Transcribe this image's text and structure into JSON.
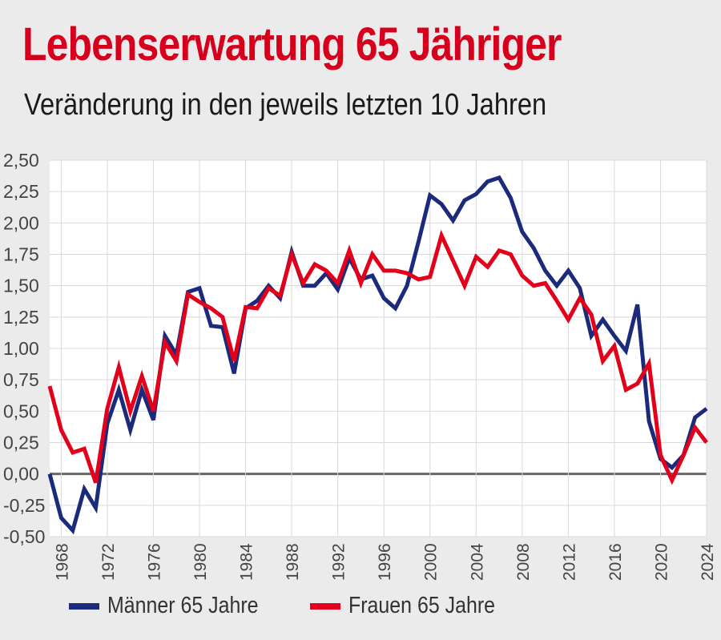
{
  "title": "Lebenserwartung 65 Jähriger",
  "subtitle": "Veränderung in den jeweils letzten 10 Jahren",
  "colors": {
    "accent": "#d6001c",
    "maenner": "#1b2a7a",
    "frauen": "#e3001b",
    "zero_line": "#666666",
    "grid": "#d9d9d9"
  },
  "chart_data": {
    "type": "line",
    "title": "Lebenserwartung 65 Jähriger",
    "subtitle": "Veränderung in den jeweils letzten 10 Jahren",
    "xlabel": "",
    "ylabel": "",
    "ylim": [
      -0.5,
      2.5
    ],
    "xlim": [
      1967,
      2024
    ],
    "y_ticks": [
      "2,50",
      "2,25",
      "2,00",
      "1,75",
      "1,50",
      "1,25",
      "1,00",
      "0,75",
      "0,50",
      "0,25",
      "0,00",
      "-0,25",
      "-0,50"
    ],
    "x_ticks": [
      "1968",
      "1972",
      "1976",
      "1980",
      "1984",
      "1988",
      "1992",
      "1996",
      "2000",
      "2004",
      "2008",
      "2012",
      "2016",
      "2020",
      "2024"
    ],
    "grid": true,
    "legend": "bottom",
    "series": [
      {
        "name": "Männer 65 Jahre",
        "color": "#1b2a7a",
        "points": [
          [
            1967,
            0.0
          ],
          [
            1968,
            -0.35
          ],
          [
            1969,
            -0.45
          ],
          [
            1970,
            -0.12
          ],
          [
            1971,
            -0.27
          ],
          [
            1972,
            0.4
          ],
          [
            1973,
            0.67
          ],
          [
            1974,
            0.35
          ],
          [
            1975,
            0.67
          ],
          [
            1976,
            0.43
          ],
          [
            1977,
            1.1
          ],
          [
            1978,
            0.95
          ],
          [
            1979,
            1.45
          ],
          [
            1980,
            1.48
          ],
          [
            1981,
            1.18
          ],
          [
            1982,
            1.17
          ],
          [
            1983,
            0.8
          ],
          [
            1984,
            1.32
          ],
          [
            1985,
            1.38
          ],
          [
            1986,
            1.5
          ],
          [
            1987,
            1.4
          ],
          [
            1988,
            1.77
          ],
          [
            1989,
            1.5
          ],
          [
            1990,
            1.5
          ],
          [
            1991,
            1.6
          ],
          [
            1992,
            1.47
          ],
          [
            1993,
            1.72
          ],
          [
            1994,
            1.55
          ],
          [
            1995,
            1.58
          ],
          [
            1996,
            1.4
          ],
          [
            1997,
            1.32
          ],
          [
            1998,
            1.5
          ],
          [
            1999,
            1.85
          ],
          [
            2000,
            2.22
          ],
          [
            2001,
            2.15
          ],
          [
            2002,
            2.02
          ],
          [
            2003,
            2.18
          ],
          [
            2004,
            2.23
          ],
          [
            2005,
            2.33
          ],
          [
            2006,
            2.36
          ],
          [
            2007,
            2.2
          ],
          [
            2008,
            1.93
          ],
          [
            2009,
            1.8
          ],
          [
            2010,
            1.62
          ],
          [
            2011,
            1.5
          ],
          [
            2012,
            1.62
          ],
          [
            2013,
            1.48
          ],
          [
            2014,
            1.1
          ],
          [
            2015,
            1.23
          ],
          [
            2016,
            1.1
          ],
          [
            2017,
            0.98
          ],
          [
            2018,
            1.35
          ],
          [
            2019,
            0.42
          ],
          [
            2020,
            0.12
          ],
          [
            2021,
            0.05
          ],
          [
            2022,
            0.15
          ],
          [
            2023,
            0.45
          ],
          [
            2024,
            0.52
          ]
        ]
      },
      {
        "name": "Frauen 65 Jahre",
        "color": "#e3001b",
        "points": [
          [
            1967,
            0.7
          ],
          [
            1968,
            0.35
          ],
          [
            1969,
            0.17
          ],
          [
            1970,
            0.2
          ],
          [
            1971,
            -0.07
          ],
          [
            1972,
            0.52
          ],
          [
            1973,
            0.85
          ],
          [
            1974,
            0.5
          ],
          [
            1975,
            0.78
          ],
          [
            1976,
            0.5
          ],
          [
            1977,
            1.05
          ],
          [
            1978,
            0.9
          ],
          [
            1979,
            1.43
          ],
          [
            1980,
            1.37
          ],
          [
            1981,
            1.32
          ],
          [
            1982,
            1.25
          ],
          [
            1983,
            0.9
          ],
          [
            1984,
            1.33
          ],
          [
            1985,
            1.32
          ],
          [
            1986,
            1.48
          ],
          [
            1987,
            1.42
          ],
          [
            1988,
            1.75
          ],
          [
            1989,
            1.52
          ],
          [
            1990,
            1.67
          ],
          [
            1991,
            1.62
          ],
          [
            1992,
            1.52
          ],
          [
            1993,
            1.78
          ],
          [
            1994,
            1.52
          ],
          [
            1995,
            1.75
          ],
          [
            1996,
            1.62
          ],
          [
            1997,
            1.62
          ],
          [
            1998,
            1.6
          ],
          [
            1999,
            1.55
          ],
          [
            2000,
            1.57
          ],
          [
            2001,
            1.9
          ],
          [
            2002,
            1.7
          ],
          [
            2003,
            1.5
          ],
          [
            2004,
            1.73
          ],
          [
            2005,
            1.65
          ],
          [
            2006,
            1.78
          ],
          [
            2007,
            1.75
          ],
          [
            2008,
            1.58
          ],
          [
            2009,
            1.5
          ],
          [
            2010,
            1.52
          ],
          [
            2011,
            1.38
          ],
          [
            2012,
            1.23
          ],
          [
            2013,
            1.4
          ],
          [
            2014,
            1.27
          ],
          [
            2015,
            0.9
          ],
          [
            2016,
            1.02
          ],
          [
            2017,
            0.67
          ],
          [
            2018,
            0.72
          ],
          [
            2019,
            0.88
          ],
          [
            2020,
            0.15
          ],
          [
            2021,
            -0.05
          ],
          [
            2022,
            0.15
          ],
          [
            2023,
            0.37
          ],
          [
            2024,
            0.25
          ]
        ]
      }
    ]
  }
}
